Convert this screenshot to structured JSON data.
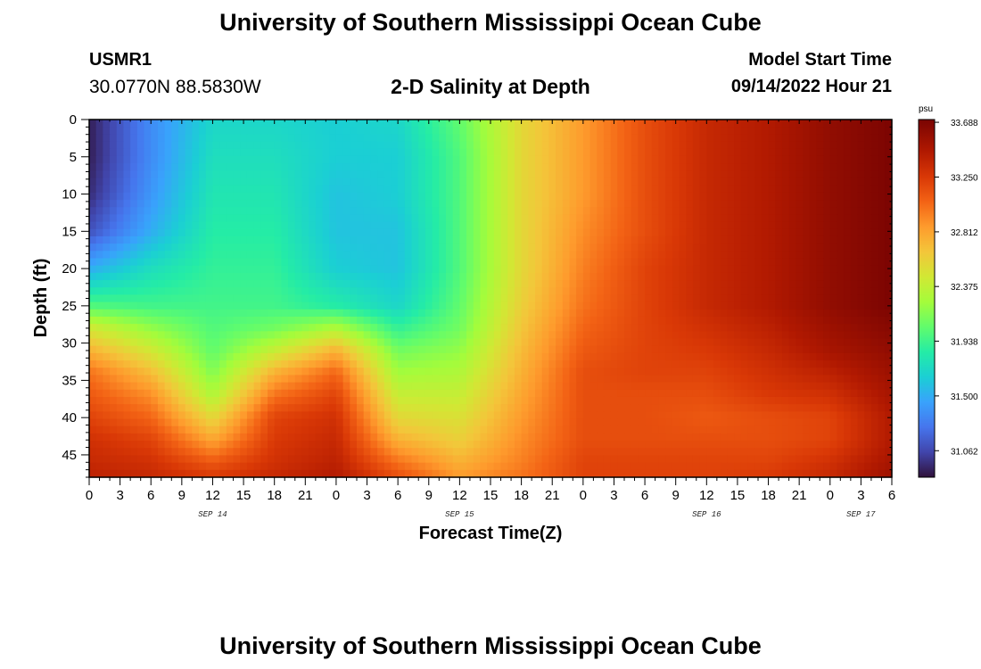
{
  "header": {
    "title": "University of Southern Mississippi Ocean Cube",
    "station_id": "USMR1",
    "station_location": "30.0770N  88.5830W",
    "start_label": "Model Start Time",
    "start_value": "09/14/2022 Hour 21"
  },
  "footer": {
    "title": "University of Southern Mississippi Ocean Cube"
  },
  "chart_data": {
    "type": "heatmap",
    "title": "2-D Salinity at Depth",
    "xlabel": "Forecast Time(Z)",
    "ylabel": "Depth (ft)",
    "x_range_hours": [
      0,
      78
    ],
    "x_ticks": [
      {
        "hour": 0,
        "label": "0"
      },
      {
        "hour": 3,
        "label": "3"
      },
      {
        "hour": 6,
        "label": "6"
      },
      {
        "hour": 9,
        "label": "9"
      },
      {
        "hour": 12,
        "label": "12"
      },
      {
        "hour": 15,
        "label": "15"
      },
      {
        "hour": 18,
        "label": "18"
      },
      {
        "hour": 21,
        "label": "21"
      },
      {
        "hour": 24,
        "label": "0"
      },
      {
        "hour": 27,
        "label": "3"
      },
      {
        "hour": 30,
        "label": "6"
      },
      {
        "hour": 33,
        "label": "9"
      },
      {
        "hour": 36,
        "label": "12"
      },
      {
        "hour": 39,
        "label": "15"
      },
      {
        "hour": 42,
        "label": "18"
      },
      {
        "hour": 45,
        "label": "21"
      },
      {
        "hour": 48,
        "label": "0"
      },
      {
        "hour": 51,
        "label": "3"
      },
      {
        "hour": 54,
        "label": "6"
      },
      {
        "hour": 57,
        "label": "9"
      },
      {
        "hour": 60,
        "label": "12"
      },
      {
        "hour": 63,
        "label": "15"
      },
      {
        "hour": 66,
        "label": "18"
      },
      {
        "hour": 69,
        "label": "21"
      },
      {
        "hour": 72,
        "label": "0"
      },
      {
        "hour": 75,
        "label": "3"
      },
      {
        "hour": 78,
        "label": "6"
      }
    ],
    "date_labels": [
      {
        "hour": 12,
        "label": "SEP 14"
      },
      {
        "hour": 36,
        "label": "SEP 15"
      },
      {
        "hour": 60,
        "label": "SEP 16"
      },
      {
        "hour": 75,
        "label": "SEP 17"
      }
    ],
    "y_range_ft": [
      0,
      48
    ],
    "y_ticks": [
      0,
      5,
      10,
      15,
      20,
      25,
      30,
      35,
      40,
      45
    ],
    "colorbar": {
      "unit": "psu",
      "min": 30.85,
      "max": 33.71,
      "labels": [
        "33.688",
        "33.250",
        "32.812",
        "32.375",
        "31.938",
        "31.500",
        "31.062"
      ],
      "label_values": [
        33.688,
        33.25,
        32.812,
        32.375,
        31.938,
        31.5,
        31.062
      ]
    },
    "grid": {
      "times_hours": [
        0,
        6,
        12,
        18,
        24,
        30,
        36,
        42,
        48,
        54,
        60,
        66,
        72,
        78
      ],
      "depths_ft": [
        0,
        5,
        10,
        15,
        20,
        25,
        28,
        31,
        34,
        37,
        40,
        43,
        46,
        48
      ],
      "values_psu": [
        [
          30.9,
          31.35,
          31.7,
          31.7,
          31.65,
          31.7,
          32.05,
          32.55,
          32.85,
          33.15,
          33.35,
          33.45,
          33.6,
          33.7
        ],
        [
          30.9,
          31.35,
          31.75,
          31.75,
          31.65,
          31.65,
          32.0,
          32.55,
          32.85,
          33.15,
          33.35,
          33.45,
          33.6,
          33.7
        ],
        [
          30.95,
          31.4,
          31.8,
          31.8,
          31.6,
          31.65,
          32.0,
          32.55,
          32.85,
          33.15,
          33.35,
          33.45,
          33.6,
          33.7
        ],
        [
          31.1,
          31.5,
          31.85,
          31.85,
          31.6,
          31.6,
          32.0,
          32.55,
          32.9,
          33.15,
          33.35,
          33.45,
          33.6,
          33.7
        ],
        [
          31.5,
          31.75,
          31.9,
          31.9,
          31.65,
          31.6,
          32.0,
          32.55,
          32.95,
          33.2,
          33.35,
          33.45,
          33.6,
          33.7
        ],
        [
          32.0,
          31.95,
          31.95,
          31.95,
          31.85,
          31.7,
          32.05,
          32.6,
          33.0,
          33.2,
          33.35,
          33.45,
          33.6,
          33.7
        ],
        [
          32.45,
          32.2,
          32.0,
          32.1,
          32.3,
          31.9,
          32.1,
          32.65,
          33.05,
          33.2,
          33.3,
          33.4,
          33.55,
          33.65
        ],
        [
          32.75,
          32.45,
          32.05,
          32.4,
          32.75,
          32.1,
          32.2,
          32.7,
          33.1,
          33.2,
          33.25,
          33.35,
          33.5,
          33.6
        ],
        [
          33.0,
          32.7,
          32.15,
          32.75,
          33.05,
          32.25,
          32.3,
          32.75,
          33.15,
          33.2,
          33.2,
          33.3,
          33.4,
          33.55
        ],
        [
          33.1,
          32.9,
          32.3,
          33.0,
          33.2,
          32.4,
          32.4,
          32.8,
          33.15,
          33.15,
          33.15,
          33.25,
          33.3,
          33.5
        ],
        [
          33.2,
          33.05,
          32.55,
          33.2,
          33.3,
          32.55,
          32.5,
          32.85,
          33.15,
          33.15,
          33.1,
          33.15,
          33.2,
          33.45
        ],
        [
          33.3,
          33.2,
          32.8,
          33.25,
          33.35,
          32.75,
          32.6,
          32.9,
          33.15,
          33.15,
          33.15,
          33.15,
          33.2,
          33.45
        ],
        [
          33.35,
          33.3,
          33.1,
          33.3,
          33.4,
          33.0,
          32.75,
          32.95,
          33.2,
          33.2,
          33.2,
          33.2,
          33.3,
          33.5
        ],
        [
          33.4,
          33.35,
          33.25,
          33.35,
          33.45,
          33.15,
          32.85,
          33.0,
          33.2,
          33.2,
          33.2,
          33.25,
          33.35,
          33.55
        ]
      ]
    }
  }
}
